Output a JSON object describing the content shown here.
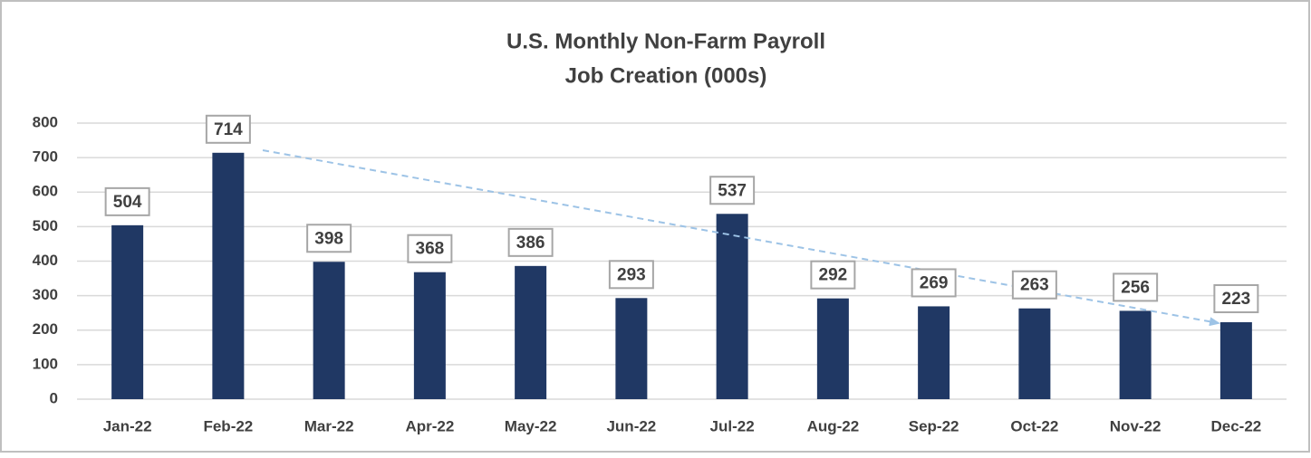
{
  "chart_data": {
    "type": "bar",
    "title": "U.S. Monthly Non-Farm Payroll",
    "subtitle": "Job Creation (000s)",
    "categories": [
      "Jan-22",
      "Feb-22",
      "Mar-22",
      "Apr-22",
      "May-22",
      "Jun-22",
      "Jul-22",
      "Aug-22",
      "Sep-22",
      "Oct-22",
      "Nov-22",
      "Dec-22"
    ],
    "values": [
      504,
      714,
      398,
      368,
      386,
      293,
      537,
      292,
      269,
      263,
      256,
      223
    ],
    "color": "#203864",
    "ylim": [
      0,
      800
    ],
    "yticks": [
      0,
      100,
      200,
      300,
      400,
      500,
      600,
      700,
      800
    ],
    "grid": true
  }
}
